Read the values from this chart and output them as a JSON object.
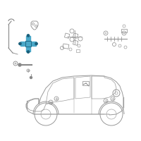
{
  "bg_color": "#ffffff",
  "fig_width": 2.0,
  "fig_height": 2.0,
  "dpi": 100,
  "highlight_color": "#4aa8c8",
  "part_color": "#888888",
  "car_color": "#999999",
  "car_lw": 0.7
}
